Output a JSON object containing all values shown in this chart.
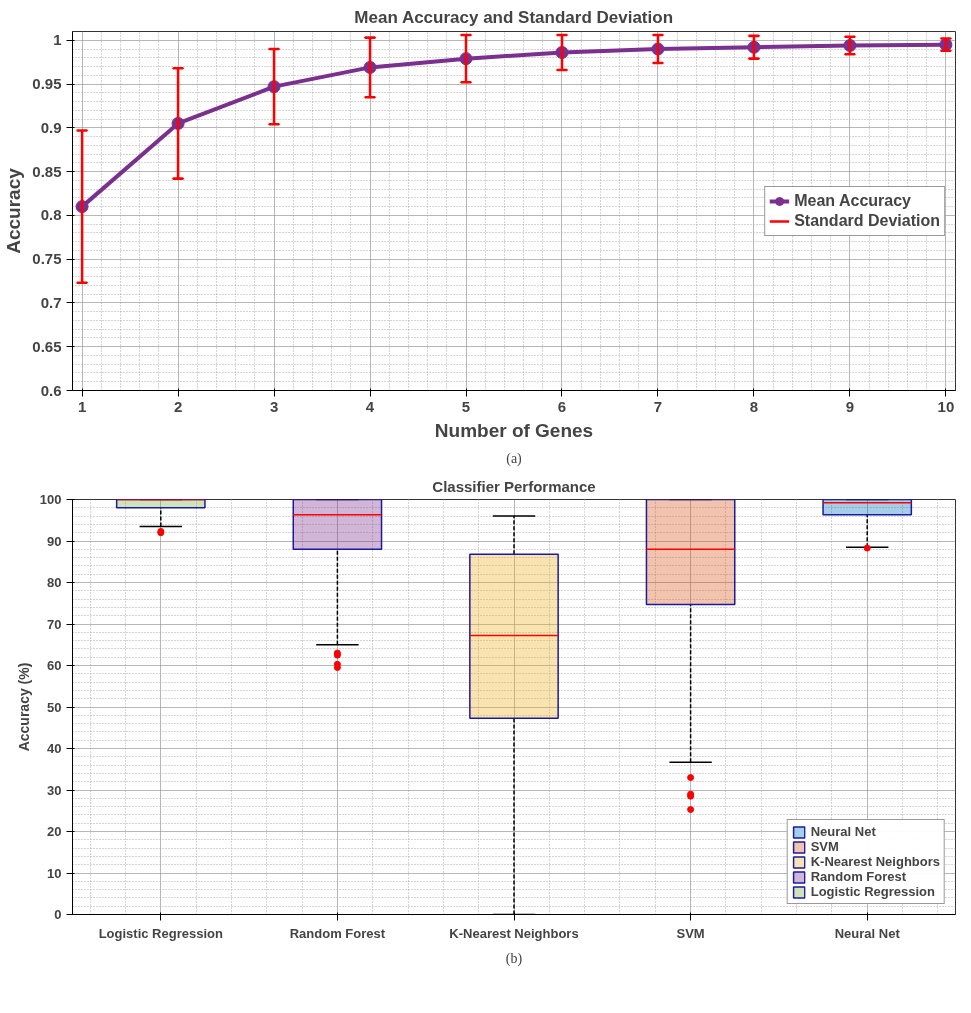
{
  "chart_data": [
    {
      "type": "line",
      "title": "Mean Accuracy and Standard Deviation",
      "xlabel": "Number of Genes",
      "ylabel": "Accuracy",
      "x": [
        1,
        2,
        3,
        4,
        5,
        6,
        7,
        8,
        9,
        10
      ],
      "series": [
        {
          "name": "Mean Accuracy",
          "color": "#7b2f8e",
          "values": [
            0.81,
            0.905,
            0.947,
            0.969,
            0.979,
            0.986,
            0.99,
            0.992,
            0.994,
            0.995
          ],
          "errors": [
            0.087,
            0.063,
            0.043,
            0.034,
            0.027,
            0.02,
            0.016,
            0.013,
            0.01,
            0.007
          ]
        }
      ],
      "xlim": [
        0.9,
        10.1
      ],
      "xticks": [
        1,
        2,
        3,
        4,
        5,
        6,
        7,
        8,
        9,
        10
      ],
      "ylim": [
        0.6,
        1.01
      ],
      "yticks": [
        0.6,
        0.65,
        0.7,
        0.75,
        0.8,
        0.85,
        0.9,
        0.95,
        1
      ],
      "grid": true,
      "legend": "right",
      "marker": "circle",
      "line_style": "solid",
      "annotations": [
        "Standard Deviation",
        "(a)"
      ]
    },
    {
      "type": "box",
      "title": "Classifier Performance",
      "ylabel": "Accuracy (%)",
      "categories": [
        "Logistic Regression",
        "Random Forest",
        "K-Nearest Neighbors",
        "SVM",
        "Neural Net"
      ],
      "series": [
        {
          "name": "Neural Net",
          "color": "#0072bd",
          "boxes": [
            null,
            null,
            null,
            null,
            {
              "low": 88.5,
              "q1": 96.3,
              "median": 99.2,
              "q3": 100,
              "high": 100,
              "outliers": [
                88.3
              ]
            }
          ]
        },
        {
          "name": "SVM",
          "color": "#d95319",
          "boxes": [
            null,
            null,
            null,
            {
              "low": 36.7,
              "q1": 74.7,
              "median": 88,
              "q3": 100,
              "high": 100,
              "outliers": [
                33,
                29,
                28.5,
                25.3
              ]
            },
            null
          ]
        },
        {
          "name": "K-Nearest Neighbors",
          "color": "#edb120",
          "boxes": [
            null,
            null,
            {
              "low": 0,
              "q1": 47.3,
              "median": 67.2,
              "q3": 86.8,
              "high": 96
            },
            null,
            null
          ]
        },
        {
          "name": "Random Forest",
          "color": "#7e2f8e",
          "boxes": [
            null,
            {
              "low": 65,
              "q1": 88,
              "median": 96.3,
              "q3": 100,
              "high": 100,
              "outliers": [
                63,
                62.5,
                60.3,
                59.5
              ]
            },
            null,
            null,
            null
          ]
        },
        {
          "name": "Logistic Regression",
          "color": "#77ac30",
          "boxes": [
            {
              "low": 93.5,
              "q1": 98,
              "median": 100,
              "q3": 100,
              "high": 100,
              "outliers": [
                92.3,
                92.0
              ]
            },
            null,
            null,
            null,
            null
          ]
        }
      ],
      "ylim": [
        0,
        100
      ],
      "yticks": [
        0,
        10,
        20,
        30,
        40,
        50,
        60,
        70,
        80,
        90,
        100
      ],
      "grid": true,
      "legend": "bottom right",
      "annotations": [
        "(b)"
      ]
    }
  ]
}
